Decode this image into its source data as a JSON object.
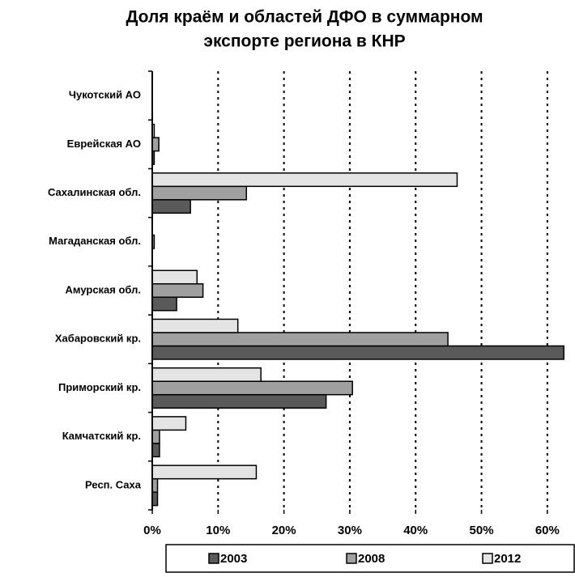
{
  "chart_data": {
    "type": "barh",
    "title": [
      "Доля краём и областей ДФО в суммарном",
      "экспорте региона в КНР"
    ],
    "categories": [
      "Чукотский АО",
      "Еврейская АО",
      "Сахалинская обл.",
      "Магаданская обл.",
      "Амурская обл.",
      "Хабаровский кр.",
      "Приморский кр.",
      "Камчатский кр.",
      "Респ. Саха"
    ],
    "series": [
      {
        "name": "2003",
        "color": "#5a5a5a",
        "values": [
          0,
          0.3,
          5.8,
          0,
          3.7,
          62.5,
          26.4,
          1.1,
          0.8
        ]
      },
      {
        "name": "2008",
        "color": "#a0a0a0",
        "values": [
          0,
          1.0,
          14.3,
          0.3,
          7.7,
          44.9,
          30.4,
          1.1,
          0.8
        ]
      },
      {
        "name": "2012",
        "color": "#e4e4e4",
        "values": [
          0,
          0.3,
          46.3,
          0,
          6.8,
          13.0,
          16.5,
          5.1,
          15.8
        ]
      }
    ],
    "xlim": [
      0,
      64.2
    ],
    "xticks": [
      {
        "value": 0,
        "label": "0%"
      },
      {
        "value": 10,
        "label": "10%"
      },
      {
        "value": 20,
        "label": "20%"
      },
      {
        "value": 30,
        "label": "30%"
      },
      {
        "value": 40,
        "label": "40%"
      },
      {
        "value": 50,
        "label": "50%"
      },
      {
        "value": 60,
        "label": "60%"
      }
    ],
    "grid": true
  }
}
